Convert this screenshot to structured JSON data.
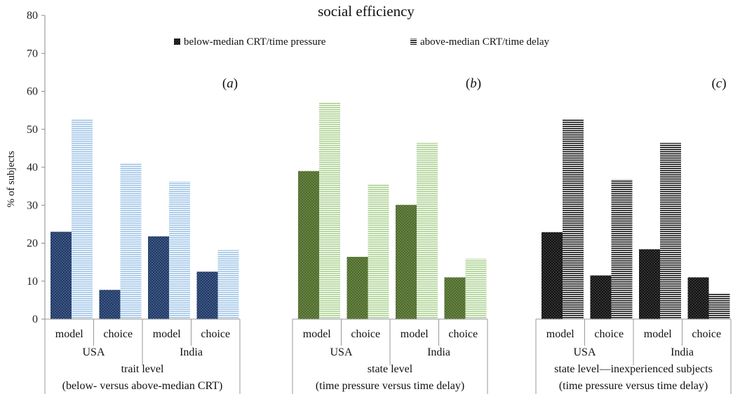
{
  "chart_data": {
    "type": "bar",
    "title": "social efficiency",
    "ylabel": "% of subjects",
    "ylim": [
      0,
      80
    ],
    "yticks": [
      0,
      10,
      20,
      30,
      40,
      50,
      60,
      70,
      80
    ],
    "grid": false,
    "legend": {
      "placement": "top-center",
      "entries": [
        {
          "key": "below",
          "label": "below-median CRT/time pressure"
        },
        {
          "key": "above",
          "label": "above-median CRT/time delay"
        }
      ]
    },
    "panels": [
      {
        "letter": "a",
        "level": "trait level",
        "condition": "(below- versus above-median CRT)",
        "colors": {
          "below": "#1f3864",
          "above": "#9dc3e6"
        },
        "countries": [
          {
            "name": "USA",
            "measures": [
              {
                "label": "model",
                "below": 23,
                "above": 52.8
              },
              {
                "label": "choice",
                "below": 7.7,
                "above": 41.2
              }
            ]
          },
          {
            "name": "India",
            "measures": [
              {
                "label": "model",
                "below": 21.8,
                "above": 36.3
              },
              {
                "label": "choice",
                "below": 12.5,
                "above": 18.2
              }
            ]
          }
        ]
      },
      {
        "letter": "b",
        "level": "state level",
        "condition": "(time pressure versus time delay)",
        "colors": {
          "below": "#4e6b2b",
          "above": "#a9d08e"
        },
        "countries": [
          {
            "name": "USA",
            "measures": [
              {
                "label": "model",
                "below": 39,
                "above": 57.2
              },
              {
                "label": "choice",
                "below": 16.4,
                "above": 35.6
              }
            ]
          },
          {
            "name": "India",
            "measures": [
              {
                "label": "model",
                "below": 30.1,
                "above": 46.4
              },
              {
                "label": "choice",
                "below": 11,
                "above": 15.9
              }
            ]
          }
        ]
      },
      {
        "letter": "c",
        "level": "state level—inexperienced subjects",
        "condition": "(time pressure versus time delay)",
        "colors": {
          "below": "#111111",
          "above": "#111111"
        },
        "countries": [
          {
            "name": "USA",
            "measures": [
              {
                "label": "model",
                "below": 22.9,
                "above": 52.6
              },
              {
                "label": "choice",
                "below": 11.5,
                "above": 36.8
              }
            ]
          },
          {
            "name": "India",
            "measures": [
              {
                "label": "model",
                "below": 18.4,
                "above": 46.4
              },
              {
                "label": "choice",
                "below": 11,
                "above": 6.9
              }
            ]
          }
        ]
      }
    ]
  }
}
